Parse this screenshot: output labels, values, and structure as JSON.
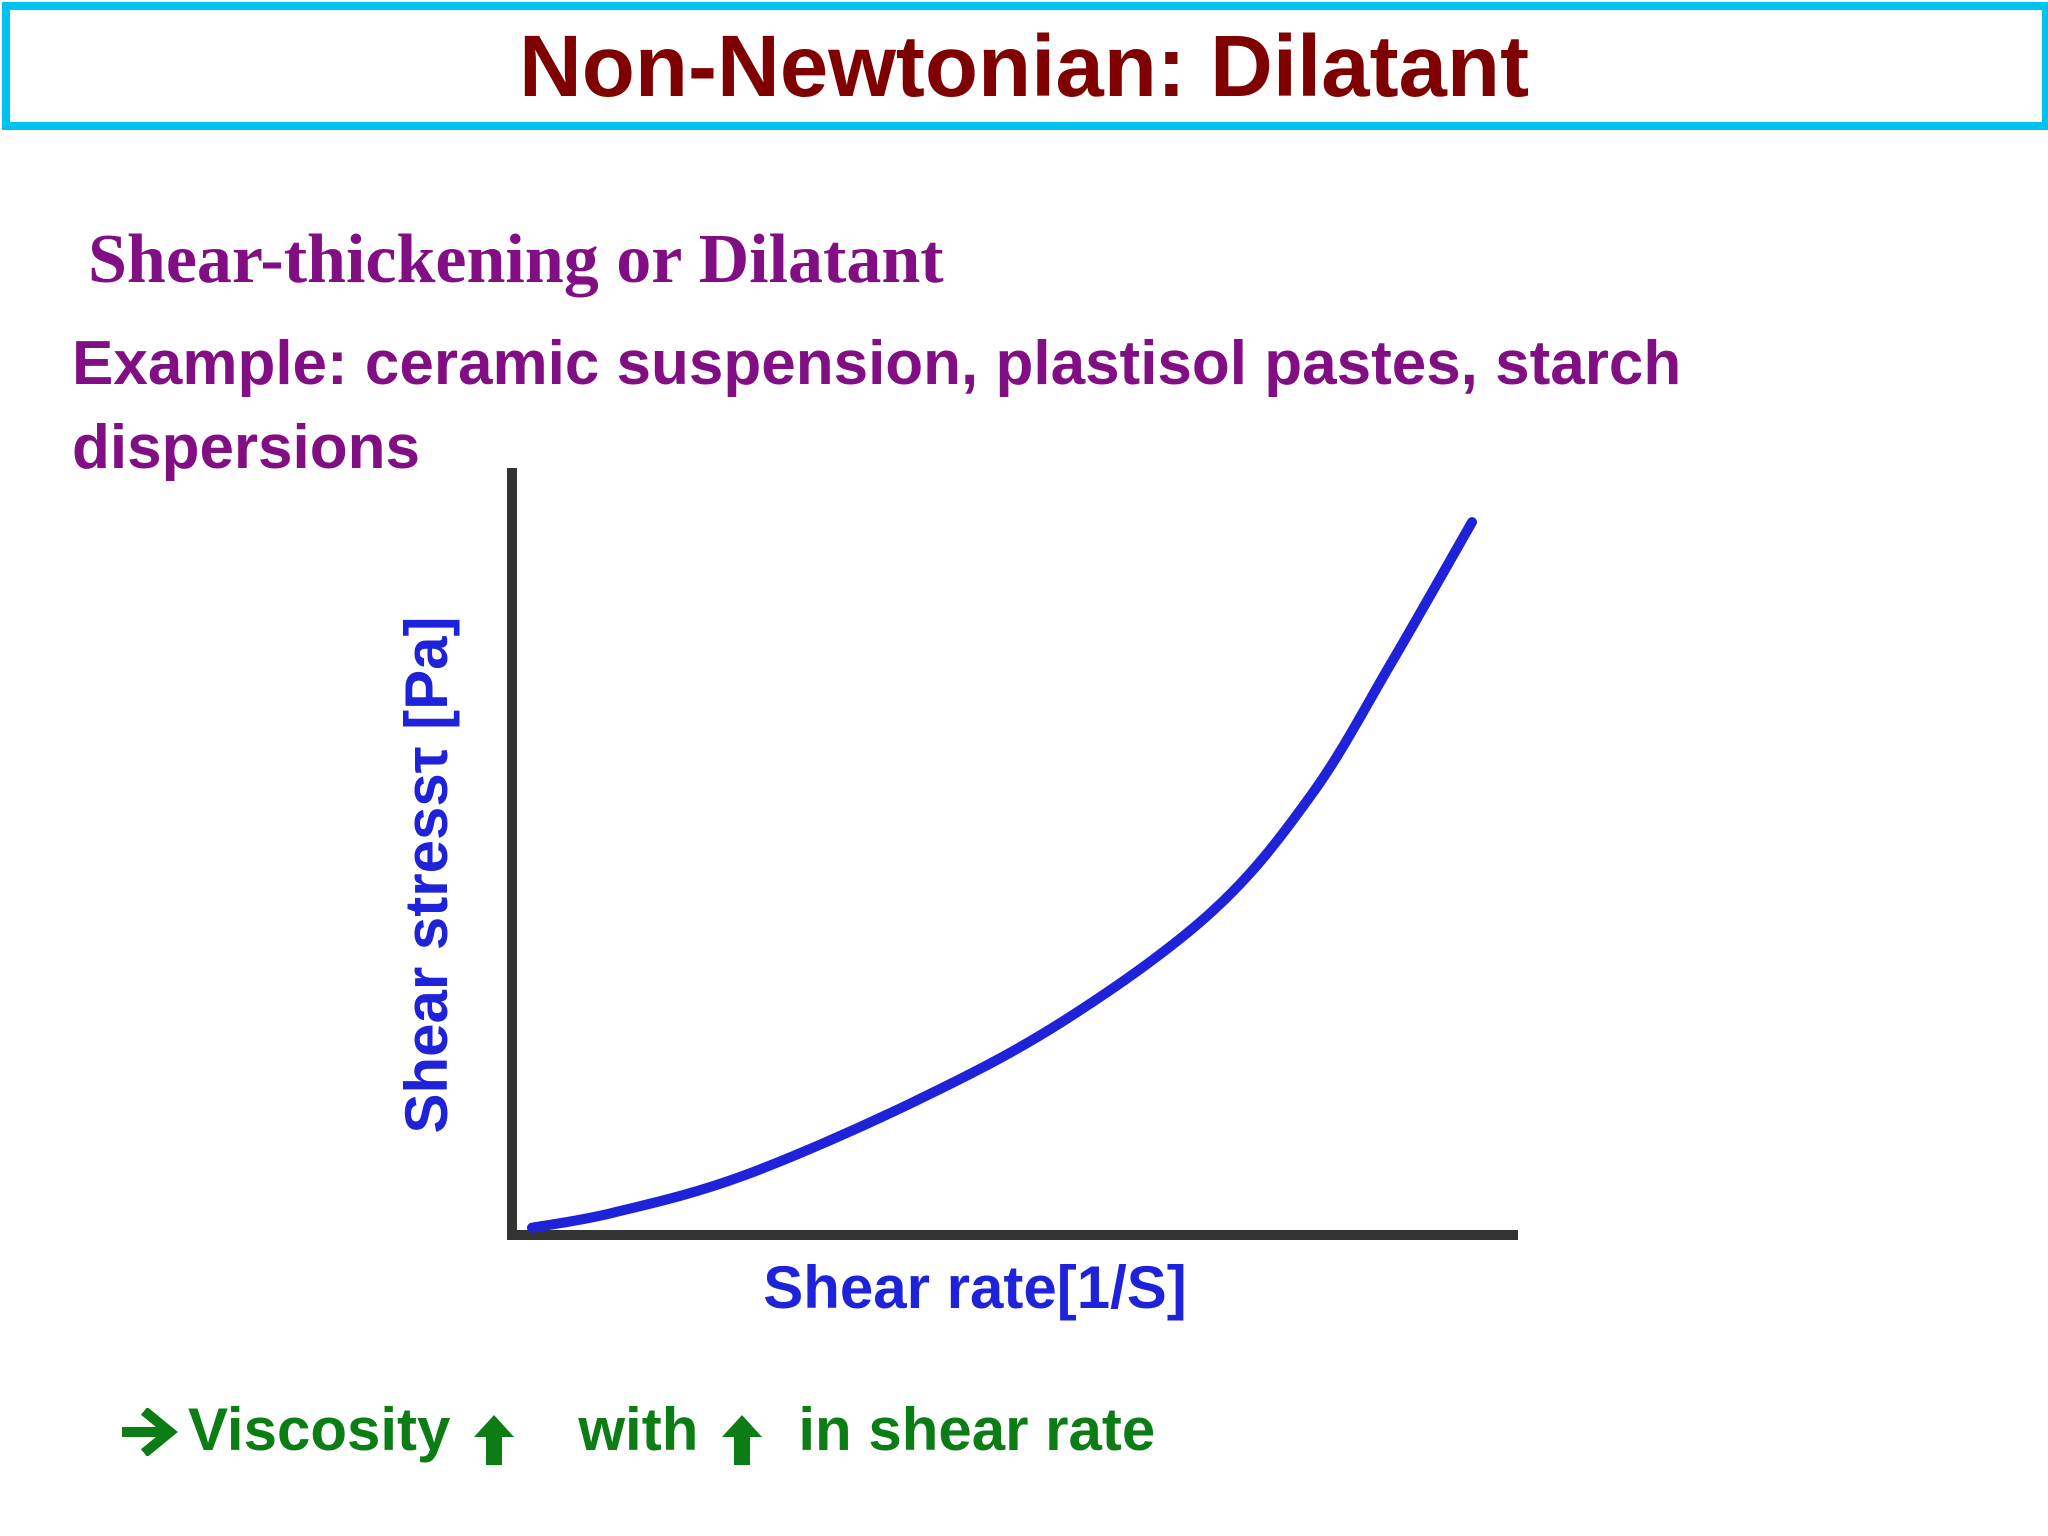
{
  "slide": {
    "title": "Non-Newtonian: Dilatant",
    "subtitle": "Shear-thickening or Dilatant",
    "example": "Example: ceramic suspension, plastisol pastes, starch dispersions",
    "note": {
      "viscosity_text": "Viscosity",
      "with_text": "with",
      "tail_text": "in shear rate"
    }
  },
  "colors": {
    "title": "#7f0000",
    "title_border": "#00c2ef",
    "subtitle": "#820e84",
    "axis_text": "#1e22d8",
    "curve": "#1e22d8",
    "axes": "#333333",
    "note": "#0b7d14"
  },
  "icons": {
    "note_lead": "right-arrow-icon",
    "increase": "up-arrow-icon"
  },
  "chart_data": {
    "type": "line",
    "title": "",
    "xlabel": "Shear rate[1/S]",
    "ylabel": "Shear stressτ [Pa]",
    "xlim": [
      0,
      1
    ],
    "ylim": [
      0,
      1
    ],
    "grid": false,
    "legend": "none",
    "series": [
      {
        "x": [
          0.02,
          0.1,
          0.23,
          0.4,
          0.55,
          0.7,
          0.8,
          0.88,
          0.96
        ],
        "y": [
          0.01,
          0.03,
          0.08,
          0.18,
          0.29,
          0.44,
          0.6,
          0.78,
          0.97
        ]
      }
    ]
  }
}
